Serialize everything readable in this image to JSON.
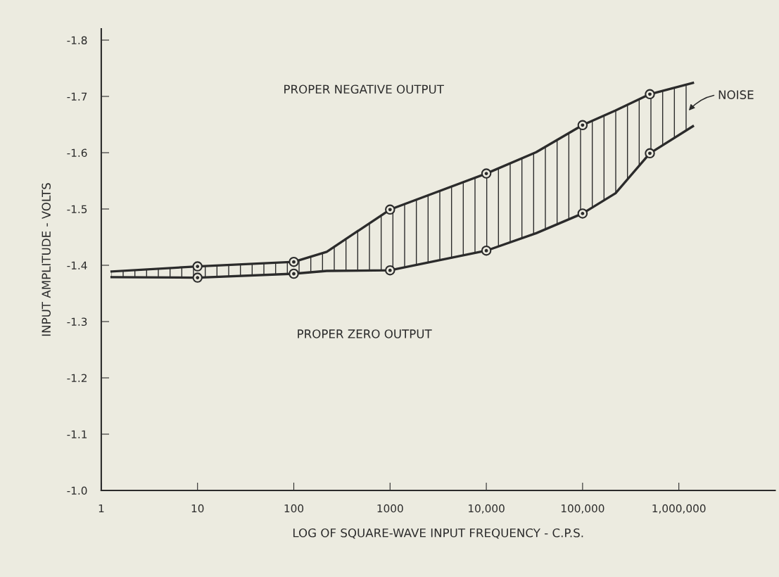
{
  "chart_data": {
    "type": "line",
    "xlabel": "LOG OF SQUARE-WAVE INPUT FREQUENCY - C.P.S.",
    "ylabel": "INPUT AMPLITUDE - VOLTS",
    "log": "x",
    "series": [
      {
        "color": "#2b2b2b",
        "x": [
          1.28,
          10,
          100,
          220,
          1000,
          10000,
          33000,
          100000,
          220000,
          500000,
          1400000
        ],
        "values": [
          -1.389,
          -1.398,
          -1.406,
          -1.424,
          -1.499,
          -1.563,
          -1.601,
          -1.649,
          -1.675,
          -1.704,
          -1.724
        ]
      },
      {
        "color": "#2b2b2b",
        "x": [
          1.28,
          10,
          100,
          220,
          1000,
          10000,
          33000,
          100000,
          220000,
          500000,
          1400000
        ],
        "values": [
          -1.379,
          -1.378,
          -1.385,
          -1.39,
          -1.391,
          -1.426,
          -1.457,
          -1.492,
          -1.528,
          -1.599,
          -1.647
        ]
      },
      {
        "type": "scatter",
        "color": "#2b2b2b",
        "marker": "circle",
        "x": [
          10,
          100,
          1000,
          10000,
          100000,
          500000
        ],
        "values": [
          -1.398,
          -1.406,
          -1.499,
          -1.563,
          -1.649,
          -1.704
        ]
      },
      {
        "type": "scatter",
        "color": "#2b2b2b",
        "marker": "circle",
        "x": [
          10,
          100,
          1000,
          10000,
          100000,
          500000
        ],
        "values": [
          -1.378,
          -1.385,
          -1.391,
          -1.426,
          -1.492,
          -1.599
        ]
      }
    ],
    "annotations": [
      "PROPER NEGATIVE OUTPUT",
      "PROPER ZERO OUTPUT",
      "NOISE"
    ],
    "xlim": [
      1,
      10000000
    ],
    "ylim": [
      -1.0,
      -1.82
    ],
    "xticks": [
      1,
      10,
      100,
      1000,
      {
        "value": 10000,
        "label": "10,000"
      },
      {
        "value": 100000,
        "label": "100,000"
      },
      {
        "value": 1000000,
        "label": "1,000,000"
      }
    ],
    "yticks": [
      {
        "value": -1.0,
        "label": "-1.0"
      },
      -1.1,
      -1.2,
      -1.3,
      -1.4,
      -1.5,
      -1.6,
      -1.7,
      -1.8
    ],
    "grid": false
  }
}
